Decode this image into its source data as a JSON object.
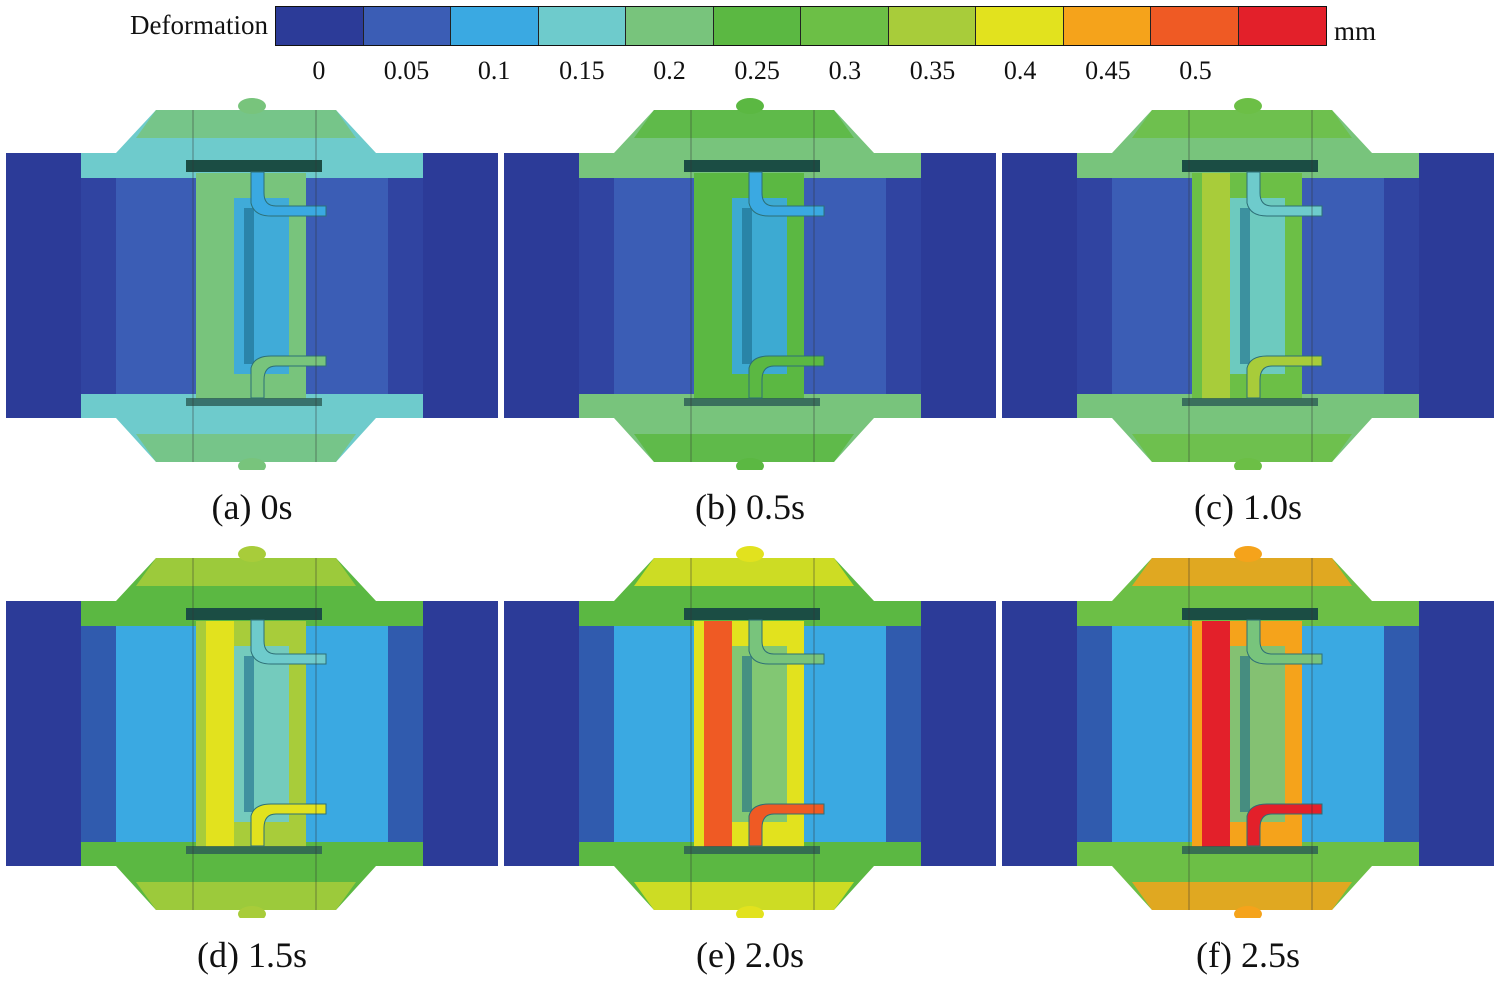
{
  "legend": {
    "title": "Deformation",
    "unit": "mm",
    "ticks": [
      "0",
      "0.05",
      "0.1",
      "0.15",
      "0.2",
      "0.25",
      "0.3",
      "0.35",
      "0.4",
      "0.45",
      "0.5"
    ],
    "colors": [
      "#2c3b98",
      "#3b5db5",
      "#3aa9e2",
      "#6ecbcc",
      "#78c47c",
      "#5bb842",
      "#6cbf46",
      "#a8cc3a",
      "#e2e21e",
      "#f5a31b",
      "#ef5a24",
      "#e3202a"
    ]
  },
  "panels": [
    {
      "caption": "(a) 0s",
      "level": 0.0
    },
    {
      "caption": "(b) 0.5s",
      "level": 0.2
    },
    {
      "caption": "(c) 1.0s",
      "level": 0.4
    },
    {
      "caption": "(d) 1.5s",
      "level": 0.6
    },
    {
      "caption": "(e) 2.0s",
      "level": 0.8
    },
    {
      "caption": "(f) 2.5s",
      "level": 1.0
    }
  ]
}
